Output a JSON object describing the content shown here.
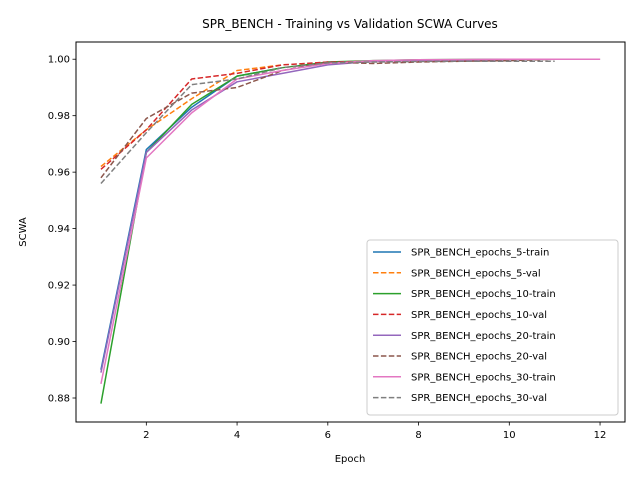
{
  "chart_data": {
    "type": "line",
    "title": "SPR_BENCH - Training vs Validation SCWA Curves",
    "xlabel": "Epoch",
    "ylabel": "SCWA",
    "xlim": [
      0.45,
      12.55
    ],
    "ylim": [
      0.8715,
      1.0061
    ],
    "xticks": [
      2,
      4,
      6,
      8,
      10,
      12
    ],
    "yticks": [
      0.88,
      0.9,
      0.92,
      0.94,
      0.96,
      0.98,
      1.0
    ],
    "ytick_labels": [
      "0.88",
      "0.90",
      "0.92",
      "0.94",
      "0.96",
      "0.98",
      "1.00"
    ],
    "grid": false,
    "legend_position": "lower-right",
    "series": [
      {
        "name": "SPR_BENCH_epochs_5-train",
        "color": "#1f77b4",
        "dash": "solid",
        "x": [
          1,
          2,
          3,
          4,
          5
        ],
        "y": [
          0.89,
          0.968,
          0.983,
          0.994,
          0.997
        ]
      },
      {
        "name": "SPR_BENCH_epochs_5-val",
        "color": "#ff7f0e",
        "dash": "dashed",
        "x": [
          1,
          2,
          3,
          4,
          5
        ],
        "y": [
          0.962,
          0.975,
          0.986,
          0.996,
          0.998
        ]
      },
      {
        "name": "SPR_BENCH_epochs_10-train",
        "color": "#2ca02c",
        "dash": "solid",
        "x": [
          1,
          2,
          3,
          4,
          5,
          6,
          7,
          8,
          9,
          10
        ],
        "y": [
          0.878,
          0.967,
          0.984,
          0.994,
          0.997,
          0.999,
          0.9995,
          0.9998,
          0.9999,
          1.0
        ]
      },
      {
        "name": "SPR_BENCH_epochs_10-val",
        "color": "#d62728",
        "dash": "dashed",
        "x": [
          1,
          2,
          3,
          4,
          5,
          6,
          7,
          8,
          9,
          10
        ],
        "y": [
          0.961,
          0.975,
          0.993,
          0.995,
          0.998,
          0.999,
          0.9993,
          0.9994,
          0.9995,
          0.9995
        ]
      },
      {
        "name": "SPR_BENCH_epochs_20-train",
        "color": "#9467bd",
        "dash": "solid",
        "x": [
          1,
          2,
          3,
          4,
          5,
          6,
          7,
          8,
          9,
          10,
          11,
          12
        ],
        "y": [
          0.889,
          0.967,
          0.982,
          0.992,
          0.995,
          0.998,
          0.9993,
          0.9996,
          0.9998,
          0.9999,
          1.0,
          1.0
        ]
      },
      {
        "name": "SPR_BENCH_epochs_20-val",
        "color": "#8c564b",
        "dash": "dashed",
        "x": [
          1,
          2,
          3,
          4,
          5,
          6,
          7,
          8,
          9,
          10,
          11,
          12
        ],
        "y": [
          0.958,
          0.979,
          0.988,
          0.99,
          0.996,
          0.999,
          0.9985,
          0.999,
          0.9993,
          0.9995,
          1.0,
          1.0
        ]
      },
      {
        "name": "SPR_BENCH_epochs_30-train",
        "color": "#e377c2",
        "dash": "solid",
        "x": [
          1,
          2,
          3,
          4,
          5,
          6,
          7,
          8,
          9,
          10,
          11,
          12
        ],
        "y": [
          0.885,
          0.965,
          0.981,
          0.993,
          0.996,
          0.9985,
          0.9995,
          0.9998,
          0.9999,
          1.0,
          1.0,
          1.0
        ]
      },
      {
        "name": "SPR_BENCH_epochs_30-val",
        "color": "#7f7f7f",
        "dash": "dashed",
        "x": [
          1,
          2,
          3,
          4,
          5,
          6,
          7,
          8,
          9,
          10,
          11
        ],
        "y": [
          0.956,
          0.974,
          0.991,
          0.993,
          0.997,
          0.9987,
          0.999,
          0.9992,
          0.9993,
          0.9993,
          0.9993
        ]
      }
    ]
  }
}
